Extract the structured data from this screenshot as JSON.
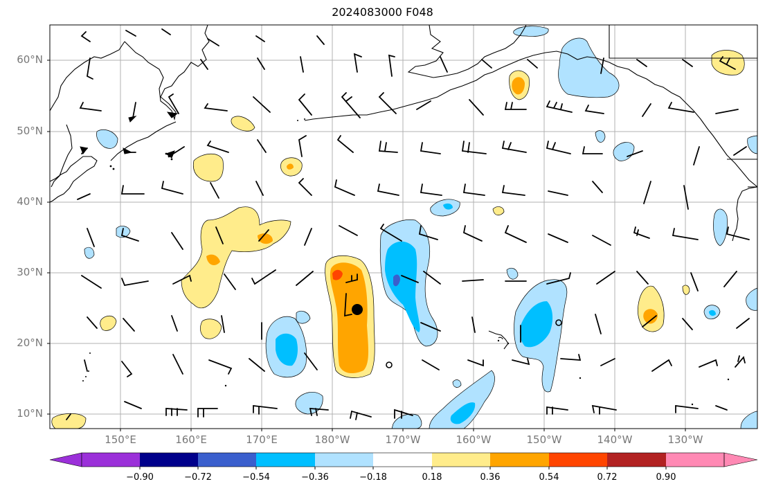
{
  "title": "2024083000 F048",
  "lat_labels": [
    "60°N",
    "50°N",
    "40°N",
    "30°N",
    "20°N",
    "10°N"
  ],
  "lon_labels": [
    "150°E",
    "160°E",
    "170°E",
    "180°W",
    "170°W",
    "160°W",
    "150°W",
    "140°W",
    "130°W"
  ],
  "colorbar": {
    "ticks": [
      "−0.90",
      "−0.72",
      "−0.54",
      "−0.36",
      "−0.18",
      "0.18",
      "0.36",
      "0.54",
      "0.72",
      "0.90"
    ],
    "colors": [
      "#9b30d9",
      "#00008b",
      "#3a5fcd",
      "#00bfff",
      "#b0e2ff",
      "#ffffff",
      "#ffec8b",
      "#ffa500",
      "#ff4500",
      "#b22222",
      "#ff89b4"
    ]
  }
}
